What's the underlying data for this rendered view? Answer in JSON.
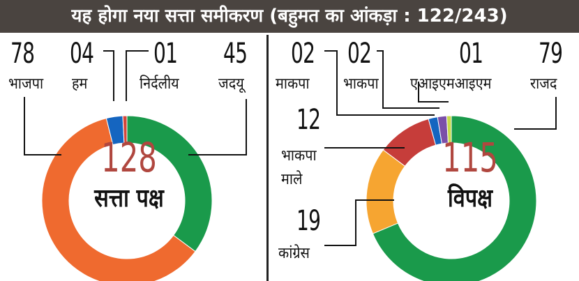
{
  "header": {
    "title": "यह होगा नया सत्ता समीकरण (बहुमत का आंकड़ा : 122/243)"
  },
  "chart_data": [
    {
      "type": "pie",
      "total": "128",
      "group_label": "सत्ता पक्ष",
      "slices": [
        {
          "label": "जदयू",
          "value": 45,
          "display": "45",
          "color": "#1a9a4b"
        },
        {
          "label": "भाजपा",
          "value": 78,
          "display": "78",
          "color": "#ef6a2f"
        },
        {
          "label": "हम",
          "value": 4,
          "display": "04",
          "color": "#1565c0"
        },
        {
          "label": "निर्दलीय",
          "value": 1,
          "display": "01",
          "color": "#d4453a"
        }
      ]
    },
    {
      "type": "pie",
      "total": "115",
      "group_label": "विपक्ष",
      "slices": [
        {
          "label": "राजद",
          "value": 79,
          "display": "79",
          "color": "#1a9a4b"
        },
        {
          "label": "कांग्रेस",
          "value": 19,
          "display": "19",
          "color": "#f6a531"
        },
        {
          "label": "भाकपा माले",
          "value": 12,
          "display": "12",
          "color": "#c63d3a"
        },
        {
          "label": "माकपा",
          "value": 2,
          "display": "02",
          "color": "#1565c0"
        },
        {
          "label": "भाकपा",
          "value": 2,
          "display": "02",
          "color": "#7b4fa8"
        },
        {
          "label": "एआइएमआइएम",
          "value": 1,
          "display": "01",
          "color": "#c8d94a"
        }
      ]
    }
  ]
}
